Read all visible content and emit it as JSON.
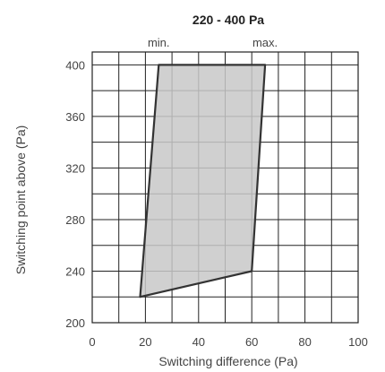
{
  "chart_data": {
    "type": "area",
    "title": "220 - 400 Pa",
    "xlabel": "Switching difference (Pa)",
    "ylabel": "Switching point above (Pa)",
    "xlim": [
      0,
      100
    ],
    "ylim": [
      200,
      410
    ],
    "x_ticks": [
      0,
      20,
      40,
      60,
      80,
      100
    ],
    "y_ticks": [
      200,
      240,
      280,
      320,
      360,
      400
    ],
    "x_grid_step": 10,
    "y_grid_step": 20,
    "grid": true,
    "annotations": [
      {
        "label": "min.",
        "x": 25
      },
      {
        "label": "max.",
        "x": 65
      }
    ],
    "polygon": [
      {
        "x": 25,
        "y": 400
      },
      {
        "x": 65,
        "y": 400
      },
      {
        "x": 60,
        "y": 240
      },
      {
        "x": 18,
        "y": 220
      }
    ],
    "fill_color": "#c8c8c8",
    "line_color": "#333333",
    "grid_color": "#222222"
  }
}
